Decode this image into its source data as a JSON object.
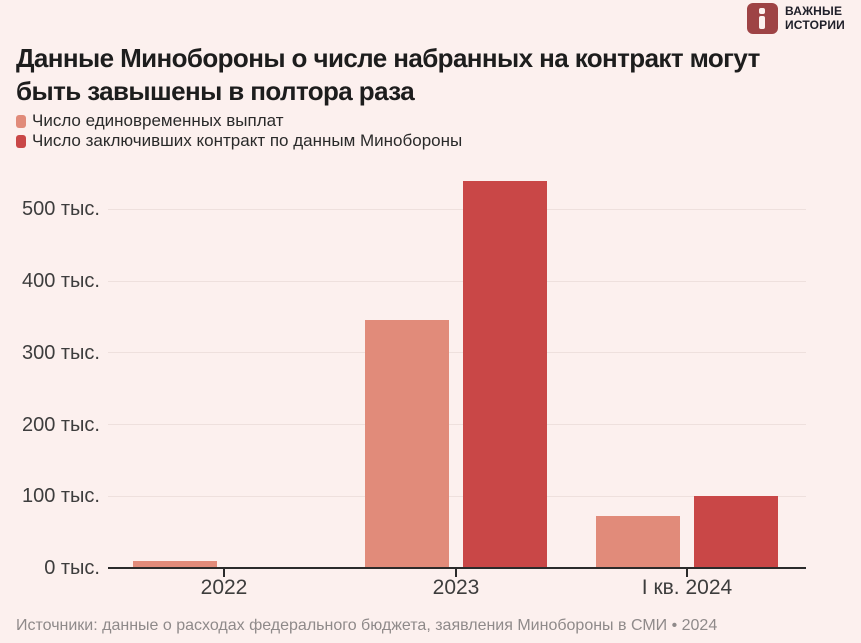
{
  "brand": {
    "name_line1": "ВАЖНЫЕ",
    "name_line2": "ИСТОРИИ",
    "logo_color": "#9e4345"
  },
  "title": "Данные Минобороны о числе набранных на контракт могут быть завышены в полтора раза",
  "source": "Источники: данные о расходах федерального бюджета, заявления Минобороны в СМИ • 2024",
  "colors": {
    "background": "#fcf0ee",
    "payments_bar": "#e18b7a",
    "mod_bar": "#c94747",
    "gridline": "#eee0dd",
    "axis": "#2b2b2b",
    "title_text": "#1d1d1d",
    "tick_text": "#3d3d3d",
    "source_text": "#8f8a8a"
  },
  "chart_data": {
    "type": "bar",
    "title": "Данные Минобороны о числе набранных на контракт могут быть завышены в полтора раза",
    "categories": [
      "2022",
      "2023",
      "I кв. 2024"
    ],
    "series": [
      {
        "name": "Число единовременных выплат",
        "color": "#e18b7a",
        "values": [
          10,
          345,
          73
        ]
      },
      {
        "name": "Число заключивших контракт по данным Минобороны",
        "color": "#c94747",
        "values": [
          null,
          540,
          100
        ]
      }
    ],
    "unit": "тыс.",
    "y_ticks": [
      0,
      100,
      200,
      300,
      400,
      500
    ],
    "y_tick_suffix": " тыс.",
    "ylim": [
      0,
      560
    ],
    "grid": "horizontal",
    "legend_position": "top-left",
    "xlabel": "",
    "ylabel": ""
  }
}
